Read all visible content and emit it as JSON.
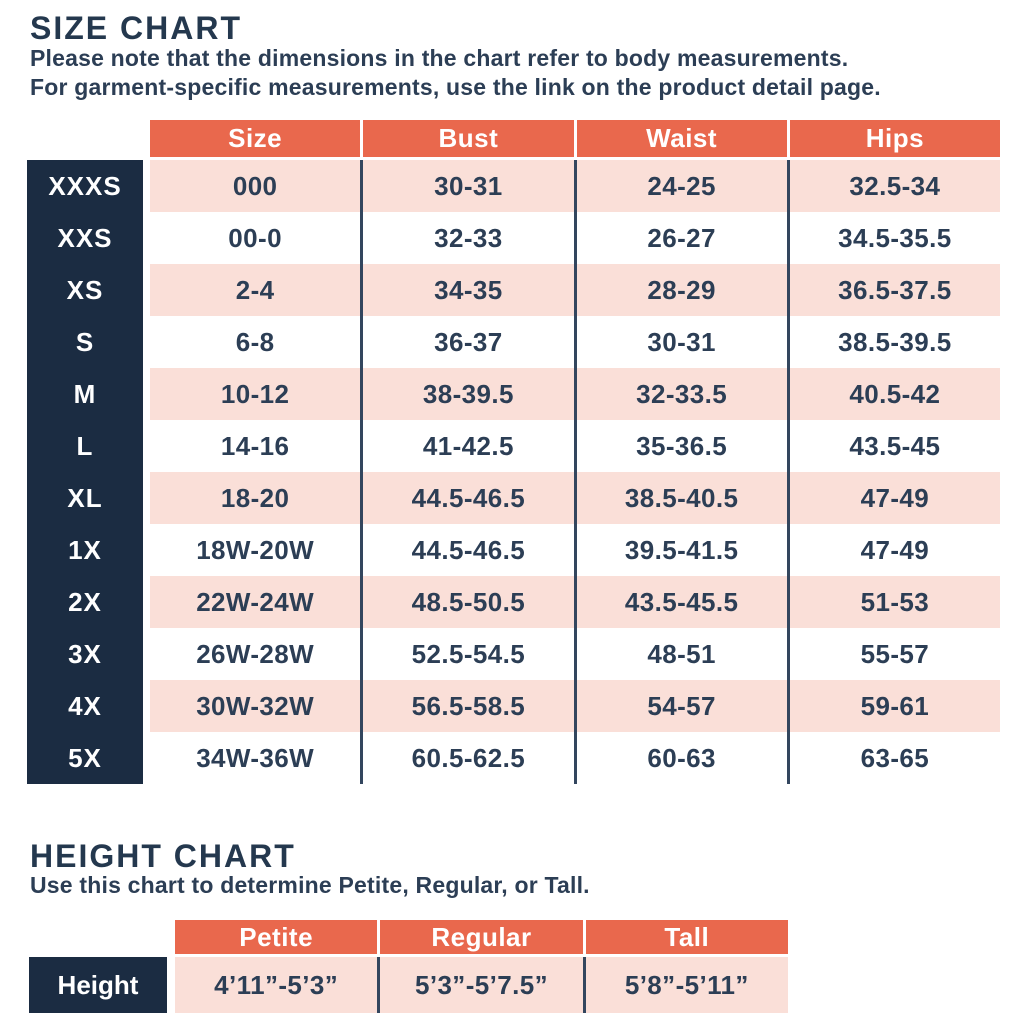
{
  "colors": {
    "orange": "#e9684d",
    "navy": "#1b2c42",
    "pink": "#fadfd8",
    "ink": "#2c3e55",
    "line": "#33465e"
  },
  "size_chart": {
    "title": "SIZE CHART",
    "note_line1": "Please note that the dimensions in the chart refer to body measurements.",
    "note_line2": "For garment-specific measurements, use the link on the product detail page.",
    "columns": [
      "Size",
      "Bust",
      "Waist",
      "Hips"
    ],
    "rows": [
      {
        "label": "XXXS",
        "size": "000",
        "bust": "30-31",
        "waist": "24-25",
        "hips": "32.5-34"
      },
      {
        "label": "XXS",
        "size": "00-0",
        "bust": "32-33",
        "waist": "26-27",
        "hips": "34.5-35.5"
      },
      {
        "label": "XS",
        "size": "2-4",
        "bust": "34-35",
        "waist": "28-29",
        "hips": "36.5-37.5"
      },
      {
        "label": "S",
        "size": "6-8",
        "bust": "36-37",
        "waist": "30-31",
        "hips": "38.5-39.5"
      },
      {
        "label": "M",
        "size": "10-12",
        "bust": "38-39.5",
        "waist": "32-33.5",
        "hips": "40.5-42"
      },
      {
        "label": "L",
        "size": "14-16",
        "bust": "41-42.5",
        "waist": "35-36.5",
        "hips": "43.5-45"
      },
      {
        "label": "XL",
        "size": "18-20",
        "bust": "44.5-46.5",
        "waist": "38.5-40.5",
        "hips": "47-49"
      },
      {
        "label": "1X",
        "size": "18W-20W",
        "bust": "44.5-46.5",
        "waist": "39.5-41.5",
        "hips": "47-49"
      },
      {
        "label": "2X",
        "size": "22W-24W",
        "bust": "48.5-50.5",
        "waist": "43.5-45.5",
        "hips": "51-53"
      },
      {
        "label": "3X",
        "size": "26W-28W",
        "bust": "52.5-54.5",
        "waist": "48-51",
        "hips": "55-57"
      },
      {
        "label": "4X",
        "size": "30W-32W",
        "bust": "56.5-58.5",
        "waist": "54-57",
        "hips": "59-61"
      },
      {
        "label": "5X",
        "size": "34W-36W",
        "bust": "60.5-62.5",
        "waist": "60-63",
        "hips": "63-65"
      }
    ]
  },
  "height_chart": {
    "title": "HEIGHT CHART",
    "note": "Use this chart to determine Petite, Regular, or Tall.",
    "columns": [
      "Petite",
      "Regular",
      "Tall"
    ],
    "row_label": "Height",
    "values": [
      "4’11”-5’3”",
      "5’3”-5’7.5”",
      "5’8”-5’11”"
    ]
  }
}
